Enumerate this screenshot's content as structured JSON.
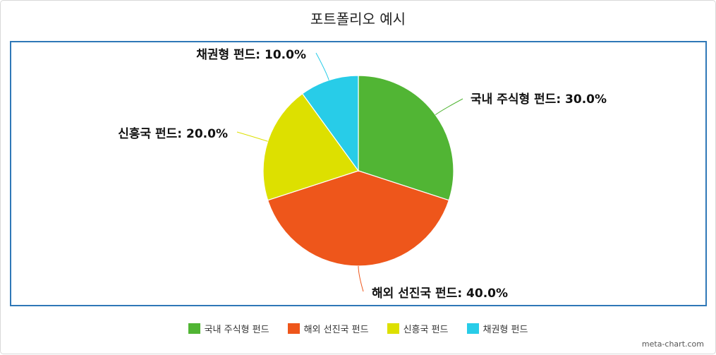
{
  "title": "포트폴리오 예시",
  "credit": "meta-chart.com",
  "chart_data": {
    "type": "pie",
    "title": "포트폴리오 예시",
    "legend_position": "bottom",
    "slices": [
      {
        "name": "국내 주식형 펀드",
        "value": 30.0,
        "label": "국내 주식형 펀드: 30.0%",
        "color": "#51b534"
      },
      {
        "name": "해외 선진국 펀드",
        "value": 40.0,
        "label": "해외 선진국 펀드: 40.0%",
        "color": "#ee561b"
      },
      {
        "name": "신흥국 펀드",
        "value": 20.0,
        "label": "신흥국 펀드: 20.0%",
        "color": "#dde000"
      },
      {
        "name": "채권형 펀드",
        "value": 10.0,
        "label": "채권형 펀드: 10.0%",
        "color": "#28cce8"
      }
    ]
  }
}
